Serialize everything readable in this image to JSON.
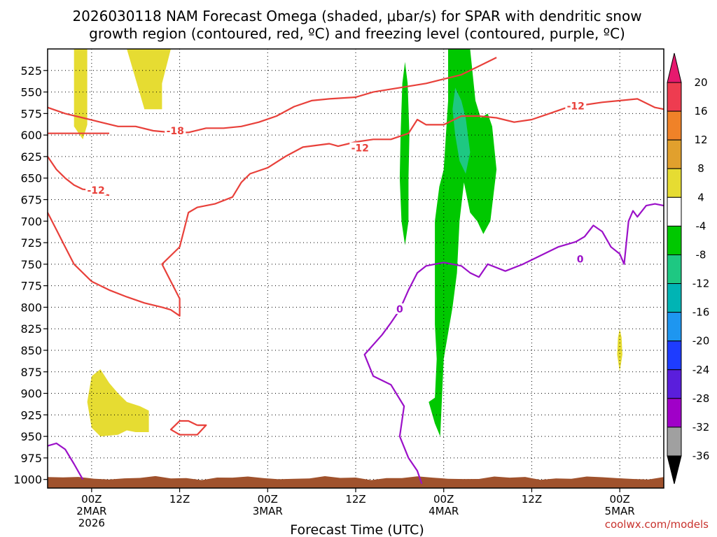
{
  "chart_data": {
    "type": "time-height",
    "title_line1": "2026030118 NAM Forecast Omega (shaded, μbar/s) for SPAR with dendritic snow",
    "title_line2": "growth region (contoured, red, ºC) and freezing level (contoured, purple, ºC)",
    "xlabel": "Forecast Time (UTC)",
    "credit": "coolwx.com/models",
    "x_range_hours": [
      -5,
      65
    ],
    "x_ticks": [
      {
        "hour": 0,
        "line1": "00Z",
        "line2": "2MAR",
        "line3": "2026"
      },
      {
        "hour": 10,
        "line1": "12Z",
        "line2": "",
        "line3": ""
      },
      {
        "hour": 20,
        "line1": "00Z",
        "line2": "3MAR",
        "line3": ""
      },
      {
        "hour": 30,
        "line1": "12Z",
        "line2": "",
        "line3": ""
      },
      {
        "hour": 40,
        "line1": "00Z",
        "line2": "4MAR",
        "line3": ""
      },
      {
        "hour": 50,
        "line1": "12Z",
        "line2": "",
        "line3": ""
      },
      {
        "hour": 60,
        "line1": "00Z",
        "line2": "5MAR",
        "line3": ""
      }
    ],
    "y_range_hpa": [
      500,
      1010
    ],
    "y_ticks": [
      525,
      550,
      575,
      600,
      625,
      650,
      675,
      700,
      725,
      750,
      775,
      800,
      825,
      850,
      875,
      900,
      925,
      950,
      975,
      1000
    ],
    "colorbar": {
      "labels": [
        "20",
        "16",
        "12",
        "8",
        "4",
        "-4",
        "-8",
        "-12",
        "-16",
        "-20",
        "-24",
        "-28",
        "-32",
        "-36"
      ],
      "colors": [
        "#ee3c50",
        "#f08228",
        "#e1a02d",
        "#e6dc32",
        "#ffffff",
        "#00c800",
        "#1ec882",
        "#00b4b4",
        "#1e96f0",
        "#1e3cff",
        "#5a1edc",
        "#a000c8",
        "#a0a0a0"
      ],
      "top_color": "#e6196e",
      "bottom_color": "#000000"
    },
    "contours_red": [
      {
        "level": -18,
        "points": [
          [
            -5,
            568
          ],
          [
            -3,
            575
          ],
          [
            -1,
            580
          ],
          [
            1,
            585
          ],
          [
            3,
            590
          ],
          [
            5,
            590
          ],
          [
            7,
            595
          ],
          [
            9,
            597
          ],
          [
            11,
            597
          ],
          [
            13,
            592
          ],
          [
            15,
            592
          ],
          [
            17,
            590
          ],
          [
            19,
            585
          ],
          [
            21,
            578
          ],
          [
            23,
            567
          ],
          [
            25,
            560
          ],
          [
            27,
            558
          ],
          [
            30,
            556
          ],
          [
            32,
            550
          ],
          [
            35,
            545
          ],
          [
            38,
            540
          ],
          [
            40,
            535
          ],
          [
            42,
            530
          ],
          [
            44,
            520
          ],
          [
            46,
            510
          ]
        ]
      },
      {
        "level": -12,
        "points": [
          [
            -5,
            598
          ],
          [
            -4,
            598
          ],
          [
            -2,
            598
          ],
          [
            0,
            598
          ],
          [
            2,
            598
          ]
        ]
      },
      {
        "level": -12,
        "points": [
          [
            2,
            670
          ],
          [
            1,
            668
          ],
          [
            0,
            664
          ],
          [
            -1,
            663
          ],
          [
            -2,
            658
          ],
          [
            -3,
            650
          ],
          [
            -4,
            640
          ],
          [
            -5,
            625
          ]
        ]
      },
      {
        "level": -12,
        "points": [
          [
            -5,
            690
          ],
          [
            -4,
            710
          ],
          [
            -3,
            730
          ],
          [
            -2,
            750
          ],
          [
            0,
            770
          ],
          [
            2,
            780
          ],
          [
            4,
            788
          ],
          [
            6,
            795
          ],
          [
            8,
            800
          ],
          [
            9,
            803
          ],
          [
            10,
            810
          ],
          [
            10,
            790
          ],
          [
            9,
            770
          ],
          [
            8,
            750
          ],
          [
            9,
            740
          ],
          [
            10,
            730
          ],
          [
            10.5,
            710
          ],
          [
            11,
            690
          ],
          [
            12,
            684
          ],
          [
            14,
            680
          ],
          [
            16,
            672
          ],
          [
            17,
            655
          ],
          [
            18,
            645
          ],
          [
            20,
            638
          ],
          [
            22,
            625
          ],
          [
            24,
            614
          ],
          [
            27,
            610
          ],
          [
            28,
            613
          ],
          [
            30,
            608
          ],
          [
            32,
            605
          ],
          [
            34,
            605
          ],
          [
            36,
            598
          ],
          [
            37,
            582
          ],
          [
            38,
            588
          ],
          [
            40,
            588
          ],
          [
            42,
            578
          ],
          [
            44,
            578
          ],
          [
            46,
            580
          ],
          [
            48,
            585
          ],
          [
            50,
            582
          ],
          [
            52,
            575
          ],
          [
            54,
            568
          ],
          [
            56,
            565
          ],
          [
            58,
            562
          ],
          [
            60,
            560
          ],
          [
            62,
            558
          ],
          [
            64,
            568
          ],
          [
            65,
            570
          ]
        ]
      },
      {
        "level": -18,
        "points": [
          [
            12,
            937
          ],
          [
            11,
            932
          ],
          [
            10,
            932
          ],
          [
            9,
            942
          ],
          [
            10,
            948
          ],
          [
            12,
            948
          ],
          [
            13,
            937
          ],
          [
            12,
            937
          ]
        ]
      }
    ],
    "contour_labels_red": [
      {
        "text": "-18",
        "hour": 9.5,
        "hpa": 595
      },
      {
        "text": "-12",
        "hour": 0.5,
        "hpa": 664
      },
      {
        "text": "-12",
        "hour": 30.5,
        "hpa": 615
      },
      {
        "text": "-12",
        "hour": 55,
        "hpa": 566
      }
    ],
    "contours_purple": [
      {
        "level": 0,
        "points": [
          [
            -5,
            961
          ],
          [
            -4,
            958
          ],
          [
            -3,
            965
          ],
          [
            -2,
            982
          ],
          [
            -1,
            1000
          ]
        ]
      },
      {
        "level": 0,
        "points": [
          [
            37.5,
            1005
          ],
          [
            37,
            990
          ],
          [
            36,
            975
          ],
          [
            35,
            950
          ],
          [
            35.5,
            915
          ],
          [
            34,
            890
          ],
          [
            32,
            880
          ],
          [
            31,
            855
          ],
          [
            33,
            832
          ],
          [
            34,
            818
          ],
          [
            35,
            803
          ],
          [
            36,
            780
          ],
          [
            37,
            760
          ],
          [
            38,
            752
          ],
          [
            39,
            750
          ],
          [
            40,
            748
          ],
          [
            42,
            752
          ],
          [
            43,
            760
          ],
          [
            44,
            765
          ],
          [
            45,
            750
          ],
          [
            47,
            758
          ],
          [
            49,
            750
          ],
          [
            51,
            740
          ],
          [
            53,
            730
          ],
          [
            55,
            724
          ],
          [
            56,
            718
          ],
          [
            57,
            705
          ],
          [
            58,
            712
          ],
          [
            59,
            730
          ],
          [
            60,
            738
          ],
          [
            60.5,
            750
          ],
          [
            61,
            700
          ],
          [
            61.5,
            688
          ],
          [
            62,
            695
          ],
          [
            63,
            682
          ],
          [
            64,
            680
          ],
          [
            65,
            682
          ]
        ]
      }
    ],
    "contour_labels_purple": [
      {
        "text": "0",
        "hour": 35,
        "hpa": 802
      },
      {
        "text": "0",
        "hour": 55.5,
        "hpa": 744
      }
    ],
    "shaded_regions": [
      {
        "value_band": "4 to 8",
        "color": "#e6dc32",
        "points": [
          [
            -2,
            500
          ],
          [
            -0.5,
            500
          ],
          [
            -0.5,
            588
          ],
          [
            -1,
            605
          ],
          [
            -2,
            590
          ],
          [
            -2,
            500
          ]
        ]
      },
      {
        "value_band": "4 to 8",
        "color": "#e6dc32",
        "points": [
          [
            1,
            500
          ],
          [
            4,
            500
          ],
          [
            6,
            570
          ],
          [
            8,
            570
          ],
          [
            8,
            540
          ],
          [
            9,
            500
          ],
          [
            1,
            500
          ]
        ]
      },
      {
        "value_band": "4 to 8",
        "color": "#e6dc32",
        "points": [
          [
            0,
            880
          ],
          [
            1,
            872
          ],
          [
            2,
            888
          ],
          [
            3,
            900
          ],
          [
            4,
            910
          ],
          [
            5.5,
            915
          ],
          [
            6.5,
            920
          ],
          [
            6.5,
            945
          ],
          [
            5,
            945
          ],
          [
            4,
            943
          ],
          [
            3,
            948
          ],
          [
            1,
            950
          ],
          [
            0,
            940
          ],
          [
            -0.5,
            910
          ],
          [
            0,
            880
          ]
        ]
      },
      {
        "value_band": "4 to 8",
        "color": "#e6dc32",
        "points": [
          [
            60,
            825
          ],
          [
            60.2,
            835
          ],
          [
            60.3,
            855
          ],
          [
            60,
            875
          ],
          [
            59.7,
            855
          ],
          [
            59.8,
            835
          ],
          [
            60,
            825
          ]
        ]
      },
      {
        "value_band": "-8 to -4",
        "color": "#00c800",
        "points": [
          [
            35.6,
            515
          ],
          [
            35.9,
            540
          ],
          [
            36.1,
            600
          ],
          [
            36,
            650
          ],
          [
            36,
            700
          ],
          [
            35.6,
            728
          ],
          [
            35.2,
            700
          ],
          [
            35,
            650
          ],
          [
            35.1,
            600
          ],
          [
            35.3,
            540
          ],
          [
            35.6,
            515
          ]
        ]
      },
      {
        "value_band": "-8 to -4",
        "color": "#00c800",
        "points": [
          [
            40.5,
            500
          ],
          [
            43,
            500
          ],
          [
            43.6,
            560
          ],
          [
            44.2,
            580
          ],
          [
            45,
            575
          ],
          [
            45.5,
            590
          ],
          [
            46,
            640
          ],
          [
            45.3,
            700
          ],
          [
            44.5,
            715
          ],
          [
            43.8,
            700
          ],
          [
            43,
            690
          ],
          [
            42.3,
            655
          ],
          [
            41.8,
            700
          ],
          [
            41.5,
            760
          ],
          [
            41,
            800
          ],
          [
            40.5,
            830
          ],
          [
            40,
            860
          ],
          [
            39.8,
            905
          ],
          [
            39.6,
            950
          ],
          [
            39,
            935
          ],
          [
            38.3,
            910
          ],
          [
            39,
            905
          ],
          [
            39.2,
            860
          ],
          [
            39,
            820
          ],
          [
            39,
            760
          ],
          [
            39,
            700
          ],
          [
            39.5,
            660
          ],
          [
            40,
            640
          ],
          [
            40.5,
            560
          ],
          [
            40.5,
            500
          ]
        ]
      },
      {
        "value_band": "-12 to -8",
        "color": "#1ec882",
        "points": [
          [
            41.3,
            545
          ],
          [
            42,
            560
          ],
          [
            42.5,
            580
          ],
          [
            43,
            620
          ],
          [
            42.5,
            645
          ],
          [
            41.8,
            630
          ],
          [
            41.3,
            600
          ],
          [
            41,
            570
          ],
          [
            41.3,
            545
          ]
        ]
      }
    ],
    "terrain": {
      "color": "#a0522d",
      "surface_hpa": 1000
    }
  }
}
